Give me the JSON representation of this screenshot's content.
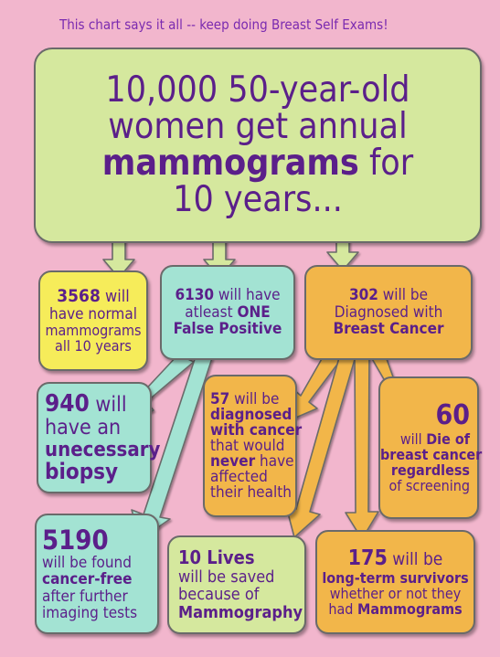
{
  "header": "This chart says it all  -- keep doing Breast Self Exams!",
  "top_box": {
    "line1": "10,000  50-year-old",
    "line2": "women get annual",
    "line3_bold": "mammograms",
    "line3_rest": " for",
    "line4": "10 years..."
  },
  "normal": {
    "num": "3568",
    "l1": " will",
    "l2": "have normal",
    "l3": "mammograms",
    "l4": "all 10 years"
  },
  "false_pos": {
    "num": "6130",
    "l1": " will have",
    "l2a": "atleast ",
    "l2b": "ONE",
    "l3": "False Positive"
  },
  "diagnosed": {
    "num": "302",
    "l1": " will be",
    "l2": "Diagnosed with",
    "l3": "Breast Cancer"
  },
  "biopsy": {
    "num": "940",
    "l1": " will",
    "l2": "have an",
    "l3": "unecessary",
    "l4": "biopsy"
  },
  "overdiag": {
    "num": "57",
    "l1": " will be",
    "l2": "diagnosed",
    "l3": "with cancer",
    "l4": "that would",
    "l5a": "never",
    "l5b": " have",
    "l6": "affected",
    "l7": "their health"
  },
  "die": {
    "num": "60",
    "l1": "will ",
    "l1b": "Die of",
    "l2": "breast cancer",
    "l3": "regardless",
    "l4": "of screening"
  },
  "cancer_free": {
    "num": "5190",
    "l1": "will be found",
    "l2": "cancer-free",
    "l3": "after further",
    "l4": "imaging tests"
  },
  "saved": {
    "l1": "10 Lives",
    "l2": "will be saved",
    "l3": "because of",
    "l4": "Mammography"
  },
  "survivors": {
    "num": "175",
    "l1": " will be",
    "l2": "long-term survivors",
    "l3": "whether or not they",
    "l4a": "had ",
    "l4b": "Mammograms"
  },
  "colors": {
    "background": "#f2b6cd",
    "text": "#5b1f8a",
    "green": "#d5e89e",
    "yellow": "#f6ec5a",
    "teal": "#a3e3d3",
    "orange": "#f2b64a"
  }
}
